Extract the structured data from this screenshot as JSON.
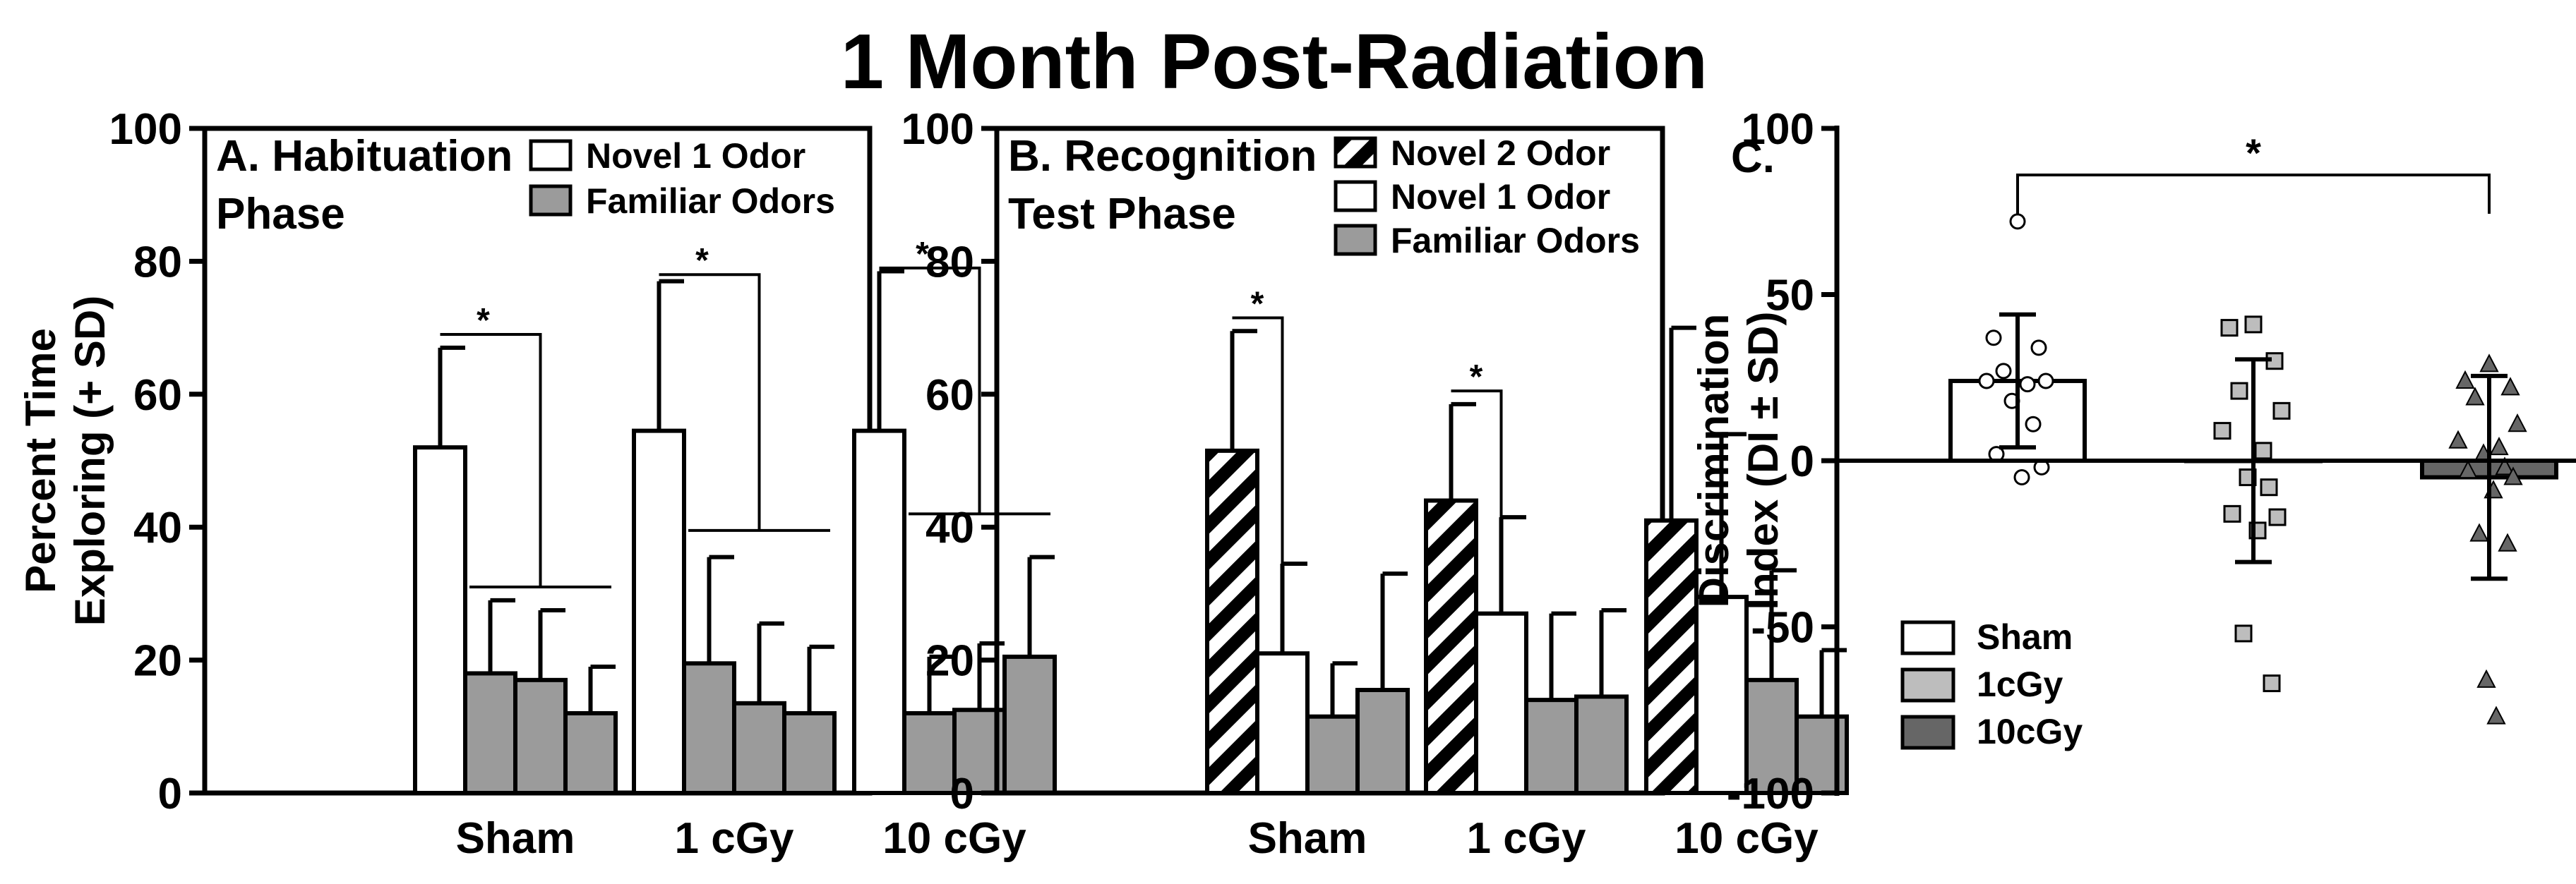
{
  "figure_title": "1 Month Post-Radiation",
  "colors": {
    "white_bar": "#ffffff",
    "gray_bar": "#9b9b9b",
    "dark_bar": "#666666",
    "light_marker": "#bdbdbd",
    "axis": "#000000"
  },
  "chart_data": [
    {
      "id": "A",
      "type": "bar",
      "panel_title": [
        "A. Habituation",
        "Phase"
      ],
      "ylabel": [
        "Percent Time",
        "Exploring (+ SD)"
      ],
      "ylim": [
        0,
        100
      ],
      "yticks": [
        "0",
        "20",
        "40",
        "60",
        "80",
        "100"
      ],
      "categories": [
        "Sham",
        "1 cGy",
        "10 cGy"
      ],
      "legend": [
        {
          "label": "Novel 1 Odor",
          "style": "white"
        },
        {
          "label": "Familiar Odors",
          "style": "gray"
        }
      ],
      "groups": [
        {
          "bars": [
            {
              "style": "white",
              "value": 52,
              "sd": 15
            },
            {
              "style": "gray",
              "value": 18,
              "sd": 11
            },
            {
              "style": "gray",
              "value": 17,
              "sd": 10.5
            },
            {
              "style": "gray",
              "value": 12,
              "sd": 7
            }
          ]
        },
        {
          "bars": [
            {
              "style": "white",
              "value": 54.5,
              "sd": 22.5
            },
            {
              "style": "gray",
              "value": 19.5,
              "sd": 16
            },
            {
              "style": "gray",
              "value": 13.5,
              "sd": 12
            },
            {
              "style": "gray",
              "value": 12,
              "sd": 10
            }
          ]
        },
        {
          "bars": [
            {
              "style": "white",
              "value": 54.5,
              "sd": 24
            },
            {
              "style": "gray",
              "value": 12,
              "sd": 8.5
            },
            {
              "style": "gray",
              "value": 12.5,
              "sd": 10
            },
            {
              "style": "gray",
              "value": 20.5,
              "sd": 15
            }
          ]
        }
      ],
      "significance": [
        {
          "label": "*",
          "top": 69,
          "drop": 31
        },
        {
          "label": "*",
          "top": 78,
          "drop": 39.5
        },
        {
          "label": "*",
          "top": 79,
          "drop": 42
        }
      ]
    },
    {
      "id": "B",
      "type": "bar",
      "panel_title": [
        "B. Recognition",
        "Test Phase"
      ],
      "ylim": [
        0,
        100
      ],
      "yticks": [
        "0",
        "20",
        "40",
        "60",
        "80",
        "100"
      ],
      "categories": [
        "Sham",
        "1 cGy",
        "10 cGy"
      ],
      "legend": [
        {
          "label": "Novel 2 Odor",
          "style": "hatched"
        },
        {
          "label": "Novel 1 Odor",
          "style": "white"
        },
        {
          "label": "Familiar Odors",
          "style": "gray"
        }
      ],
      "groups": [
        {
          "bars": [
            {
              "style": "hatched",
              "value": 51.5,
              "sd": 18
            },
            {
              "style": "white",
              "value": 21,
              "sd": 13.5
            },
            {
              "style": "gray",
              "value": 11.5,
              "sd": 8
            },
            {
              "style": "gray",
              "value": 15.5,
              "sd": 17.5
            }
          ]
        },
        {
          "bars": [
            {
              "style": "hatched",
              "value": 44,
              "sd": 14.5
            },
            {
              "style": "white",
              "value": 27,
              "sd": 14.5
            },
            {
              "style": "gray",
              "value": 14,
              "sd": 13
            },
            {
              "style": "gray",
              "value": 14.5,
              "sd": 13
            }
          ]
        },
        {
          "bars": [
            {
              "style": "hatched",
              "value": 41,
              "sd": 29
            },
            {
              "style": "white",
              "value": 29.5,
              "sd": 24.5
            },
            {
              "style": "gray",
              "value": 17,
              "sd": 16.5
            },
            {
              "style": "gray",
              "value": 11.5,
              "sd": 10
            }
          ]
        }
      ],
      "significance": [
        {
          "label": "*",
          "top": 71.5
        },
        {
          "label": "*",
          "top": 60.5
        }
      ]
    },
    {
      "id": "C",
      "type": "scatter",
      "panel_title": [
        "C."
      ],
      "ylabel": [
        "Discrimination",
        "Index (DI ± SD)"
      ],
      "ylim": [
        -100,
        100
      ],
      "yticks": [
        "-100",
        "-50",
        "0",
        "50",
        "100"
      ],
      "legend": [
        {
          "label": "Sham",
          "style": "white"
        },
        {
          "label": "1cGy",
          "style": "light"
        },
        {
          "label": "10cGy",
          "style": "dark"
        }
      ],
      "groups": [
        {
          "name": "Sham",
          "mean": 24,
          "sd": 20,
          "marker": "circle",
          "points": [
            72,
            37,
            34,
            27,
            24,
            24,
            23,
            18,
            11,
            2,
            -2,
            -5
          ]
        },
        {
          "name": "1cGy",
          "mean": 0,
          "sd": 30.5,
          "marker": "square",
          "points": [
            41,
            40,
            30,
            21,
            15,
            9,
            3,
            -5,
            -8,
            -16,
            -17,
            -21,
            -52,
            -67
          ]
        },
        {
          "name": "10cGy",
          "mean": -5,
          "sd": 30.5,
          "marker": "triangle",
          "points": [
            29,
            24,
            22,
            19,
            11,
            6,
            4,
            2,
            -2,
            -3,
            -5,
            -9,
            -22,
            -25,
            -66,
            -77
          ]
        }
      ],
      "significance": {
        "label": "*",
        "between": [
          "Sham",
          "10cGy"
        ],
        "y": 86
      }
    }
  ]
}
